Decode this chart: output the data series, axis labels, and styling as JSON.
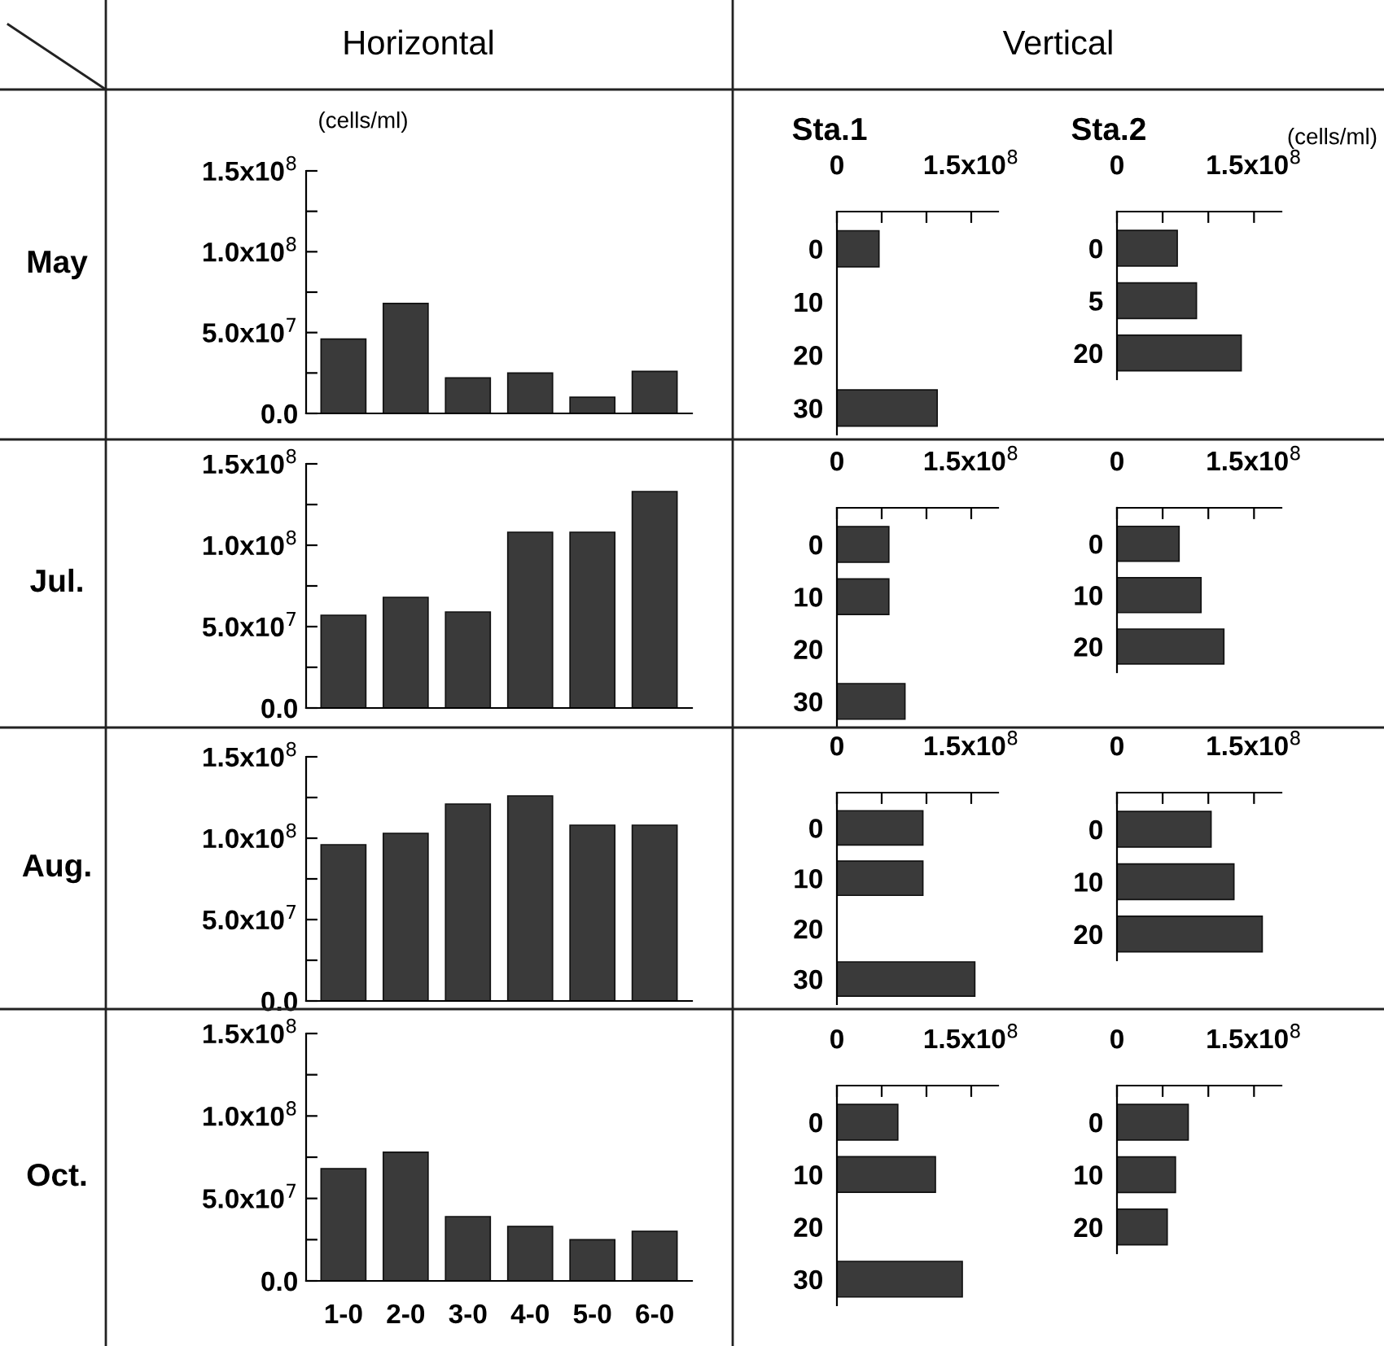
{
  "chart_data": [
    {
      "type": "bar",
      "ylabel": "May",
      "annotations": [
        "Horizontal",
        "(cells/ml)"
      ],
      "categories": [
        null,
        null,
        null,
        null,
        null,
        null
      ],
      "color": "#3a3a3a",
      "values": [
        46000000.0,
        68000000.0,
        22000000.0,
        25000000.0,
        10000000.0,
        26000000.0
      ],
      "ylim": [
        0,
        150000000.0
      ],
      "yticks": [
        {
          "value": 0,
          "label": "0.0"
        },
        {
          "value": 25000000.0,
          "label": null
        },
        {
          "value": 50000000.0,
          "label": "5.0x10$^{7}$"
        },
        {
          "value": 75000000.0,
          "label": null
        },
        {
          "value": 100000000.0,
          "label": "1.0x10$^{8}$"
        },
        {
          "value": 125000000.0,
          "label": null
        },
        {
          "value": 150000000.0,
          "label": "1.5x10$^{8}$"
        }
      ],
      "tick_labels": "y"
    },
    {
      "type": "bar",
      "orientation": "horizontal",
      "title": "Sta.1",
      "annotations": [
        "Vertical"
      ],
      "categories": [
        "0",
        "10",
        "20",
        "30"
      ],
      "color": "#3a3a3a",
      "values": [
        47000000.0,
        null,
        null,
        112000000.0
      ],
      "xlim": [
        0,
        180000000.0
      ],
      "xticks": [
        0,
        {
          "value": 50000000.0,
          "label": null
        },
        {
          "value": 100000000.0,
          "label": null
        },
        {
          "value": 150000000.0,
          "label": "1.5x10$^{8}$"
        }
      ]
    },
    {
      "type": "bar",
      "orientation": "horizontal",
      "title": "Sta.2",
      "annotations": [
        "(cells/ml)"
      ],
      "categories": [
        "0",
        "5",
        "20"
      ],
      "color": "#3a3a3a",
      "values": [
        66000000.0,
        87000000.0,
        136000000.0
      ],
      "xlim": [
        0,
        180000000.0
      ],
      "xticks": [
        0,
        {
          "value": 50000000.0,
          "label": null
        },
        {
          "value": 100000000.0,
          "label": null
        },
        {
          "value": 150000000.0,
          "label": "1.5x10$^{8}$"
        }
      ]
    },
    {
      "type": "bar",
      "ylabel": "Jul.",
      "categories": [
        null,
        null,
        null,
        null,
        null,
        null
      ],
      "color": "#3a3a3a",
      "values": [
        57000000.0,
        68000000.0,
        59000000.0,
        108000000.0,
        108000000.0,
        133000000.0
      ],
      "ylim": [
        0,
        150000000.0
      ],
      "yticks": [
        {
          "value": 0,
          "label": "0.0"
        },
        {
          "value": 25000000.0,
          "label": null
        },
        {
          "value": 50000000.0,
          "label": "5.0x10$^{7}$"
        },
        {
          "value": 75000000.0,
          "label": null
        },
        {
          "value": 100000000.0,
          "label": "1.0x10$^{8}$"
        },
        {
          "value": 125000000.0,
          "label": null
        },
        {
          "value": 150000000.0,
          "label": "1.5x10$^{8}$"
        }
      ],
      "tick_labels": "y"
    },
    {
      "type": "bar",
      "orientation": "horizontal",
      "categories": [
        "0",
        "10",
        "20",
        "30"
      ],
      "color": "#3a3a3a",
      "values": [
        58000000.0,
        58000000.0,
        null,
        76000000.0
      ],
      "xlim": [
        0,
        180000000.0
      ],
      "xticks": [
        0,
        {
          "value": 50000000.0,
          "label": null
        },
        {
          "value": 100000000.0,
          "label": null
        },
        {
          "value": 150000000.0,
          "label": "1.5x10$^{8}$"
        }
      ]
    },
    {
      "type": "bar",
      "orientation": "horizontal",
      "categories": [
        "0",
        "10",
        "20"
      ],
      "color": "#3a3a3a",
      "values": [
        68000000.0,
        92000000.0,
        117000000.0
      ],
      "xlim": [
        0,
        180000000.0
      ],
      "xticks": [
        0,
        {
          "value": 50000000.0,
          "label": null
        },
        {
          "value": 100000000.0,
          "label": null
        },
        {
          "value": 150000000.0,
          "label": "1.5x10$^{8}$"
        }
      ]
    },
    {
      "type": "bar",
      "ylabel": "Aug.",
      "categories": [
        null,
        null,
        null,
        null,
        null,
        null
      ],
      "color": "#3a3a3a",
      "values": [
        96000000.0,
        103000000.0,
        121000000.0,
        126000000.0,
        108000000.0,
        108000000.0
      ],
      "ylim": [
        0,
        150000000.0
      ],
      "yticks": [
        {
          "value": 0,
          "label": "0.0"
        },
        {
          "value": 25000000.0,
          "label": null
        },
        {
          "value": 50000000.0,
          "label": "5.0x10$^{7}$"
        },
        {
          "value": 75000000.0,
          "label": null
        },
        {
          "value": 100000000.0,
          "label": "1.0x10$^{8}$"
        },
        {
          "value": 125000000.0,
          "label": null
        },
        {
          "value": 150000000.0,
          "label": "1.5x10$^{8}$"
        }
      ],
      "tick_labels": "y"
    },
    {
      "type": "bar",
      "orientation": "horizontal",
      "categories": [
        "0",
        "10",
        "20",
        "30"
      ],
      "color": "#3a3a3a",
      "values": [
        96000000.0,
        96000000.0,
        null,
        154000000.0
      ],
      "xlim": [
        0,
        180000000.0
      ],
      "xticks": [
        0,
        {
          "value": 50000000.0,
          "label": null
        },
        {
          "value": 100000000.0,
          "label": null
        },
        {
          "value": 150000000.0,
          "label": "1.5x10$^{8}$"
        }
      ]
    },
    {
      "type": "bar",
      "orientation": "horizontal",
      "categories": [
        "0",
        "10",
        "20"
      ],
      "color": "#3a3a3a",
      "values": [
        103000000.0,
        128000000.0,
        159000000.0
      ],
      "xlim": [
        0,
        180000000.0
      ],
      "xticks": [
        0,
        {
          "value": 50000000.0,
          "label": null
        },
        {
          "value": 100000000.0,
          "label": null
        },
        {
          "value": 150000000.0,
          "label": "1.5x10$^{8}$"
        }
      ]
    },
    {
      "type": "bar",
      "ylabel": "Oct.",
      "categories": [
        "1-0",
        "2-0",
        "3-0",
        "4-0",
        "5-0",
        "6-0"
      ],
      "color": "#3a3a3a",
      "values": [
        68000000.0,
        78000000.0,
        39000000.0,
        33000000.0,
        25000000.0,
        30000000.0
      ],
      "ylim": [
        0,
        150000000.0
      ],
      "yticks": [
        {
          "value": 0,
          "label": "0.0"
        },
        {
          "value": 25000000.0,
          "label": null
        },
        {
          "value": 50000000.0,
          "label": "5.0x10$^{7}$"
        },
        {
          "value": 75000000.0,
          "label": null
        },
        {
          "value": 100000000.0,
          "label": "1.0x10$^{8}$"
        },
        {
          "value": 125000000.0,
          "label": null
        },
        {
          "value": 150000000.0,
          "label": "1.5x10$^{8}$"
        }
      ]
    },
    {
      "type": "bar",
      "orientation": "horizontal",
      "categories": [
        "0",
        "10",
        "20",
        "30"
      ],
      "color": "#3a3a3a",
      "values": [
        68000000.0,
        110000000.0,
        null,
        140000000.0
      ],
      "xlim": [
        0,
        180000000.0
      ],
      "xticks": [
        0,
        {
          "value": 50000000.0,
          "label": null
        },
        {
          "value": 100000000.0,
          "label": null
        },
        {
          "value": 150000000.0,
          "label": "1.5x10$^{8}$"
        }
      ]
    },
    {
      "type": "bar",
      "orientation": "horizontal",
      "categories": [
        "0",
        "10",
        "20"
      ],
      "color": "#3a3a3a",
      "values": [
        78000000.0,
        64000000.0,
        55000000.0
      ],
      "xlim": [
        0,
        180000000.0
      ],
      "xticks": [
        0,
        {
          "value": 50000000.0,
          "label": null
        },
        {
          "value": 100000000.0,
          "label": null
        },
        {
          "value": 150000000.0,
          "label": "1.5x10$^{8}$"
        }
      ]
    }
  ]
}
